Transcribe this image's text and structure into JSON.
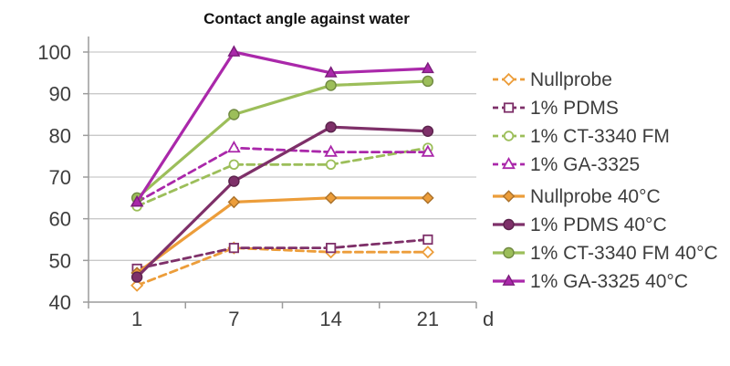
{
  "chart_data": {
    "type": "line",
    "title": "Contact angle against water",
    "xlabel": "d",
    "ylabel": "",
    "categories": [
      1,
      7,
      14,
      21
    ],
    "ylim": [
      40,
      100
    ],
    "y_ticks": [
      40,
      50,
      60,
      70,
      80,
      90,
      100
    ],
    "grid": true,
    "legend_position": "right",
    "axis_color": "#9c9c9c",
    "gridline_color": "#c9c9c9",
    "series": [
      {
        "name": "Nullprobe",
        "values": [
          44,
          53,
          52,
          52
        ],
        "color": "#EC9D3A",
        "style": "dashed",
        "marker": "diamond",
        "marker_fill": "open"
      },
      {
        "name": "1% PDMS",
        "values": [
          48,
          53,
          53,
          55
        ],
        "color": "#7E3069",
        "style": "dashed",
        "marker": "square",
        "marker_fill": "open"
      },
      {
        "name": "1% CT-3340 FM",
        "values": [
          63,
          73,
          73,
          77
        ],
        "color": "#9CBE5A",
        "style": "dashed",
        "marker": "circle",
        "marker_fill": "open"
      },
      {
        "name": "1% GA-3325",
        "values": [
          64,
          77,
          76,
          76
        ],
        "color": "#AA28AA",
        "style": "dashed",
        "marker": "triangle",
        "marker_fill": "open"
      },
      {
        "name": "Nullprobe 40°C",
        "values": [
          47,
          64,
          65,
          65
        ],
        "color": "#EC9D3A",
        "style": "solid",
        "marker": "diamond",
        "marker_fill": "filled"
      },
      {
        "name": "1% PDMS 40°C",
        "values": [
          46,
          69,
          82,
          81
        ],
        "color": "#7E3069",
        "style": "solid",
        "marker": "circle",
        "marker_fill": "filled"
      },
      {
        "name": "1% CT-3340 FM 40°C",
        "values": [
          65,
          85,
          92,
          93
        ],
        "color": "#9CBE5A",
        "style": "solid",
        "marker": "circle",
        "marker_fill": "filled"
      },
      {
        "name": "1% GA-3325 40°C",
        "values": [
          64,
          100,
          95,
          96
        ],
        "color": "#AA28AA",
        "style": "solid",
        "marker": "triangle",
        "marker_fill": "filled"
      }
    ]
  }
}
